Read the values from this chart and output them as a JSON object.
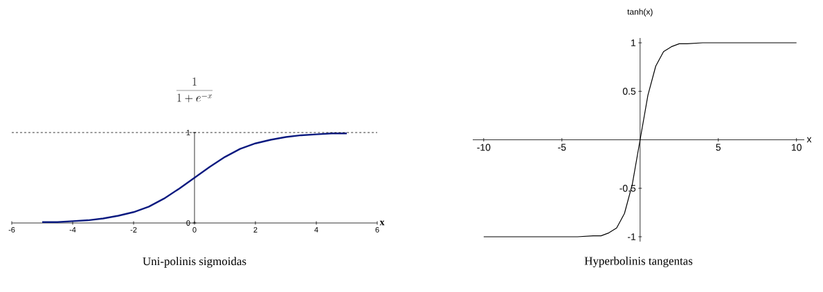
{
  "chart_data": [
    {
      "type": "line",
      "title": "Uni-polinis sigmoidas",
      "xlabel": "x",
      "ylabel": "\\frac{1}{1+e^{-x}}",
      "color": "#0a1a80",
      "x": [
        -5,
        -4.5,
        -4,
        -3.5,
        -3,
        -2.5,
        -2,
        -1.5,
        -1,
        -0.5,
        0,
        0.5,
        1,
        1.5,
        2,
        2.5,
        3,
        3.5,
        4,
        4.5,
        5
      ],
      "values": [
        0.01,
        0.01,
        0.02,
        0.03,
        0.05,
        0.08,
        0.12,
        0.18,
        0.27,
        0.38,
        0.5,
        0.62,
        0.73,
        0.82,
        0.88,
        0.92,
        0.95,
        0.97,
        0.98,
        0.99,
        0.99
      ],
      "xlim": [
        -6,
        6
      ],
      "xticks": [
        -6,
        -4,
        -2,
        0,
        2,
        4,
        6
      ],
      "ylim": [
        0,
        1
      ],
      "yticks": [
        0,
        1
      ],
      "ref_lines": [
        {
          "axis": "y",
          "value": 1,
          "line_style": "dashed"
        }
      ]
    },
    {
      "type": "line",
      "title": "Hyperbolinis tangentas",
      "xlabel": "x",
      "ylabel": "tanh(x)",
      "color": "#000000",
      "x": [
        -10,
        -7,
        -5,
        -4,
        -3,
        -2.5,
        -2,
        -1.5,
        -1,
        -0.5,
        0,
        0.5,
        1,
        1.5,
        2,
        2.5,
        3,
        4,
        5,
        7,
        10
      ],
      "values": [
        -1,
        -1,
        -1,
        -1,
        -0.99,
        -0.99,
        -0.96,
        -0.91,
        -0.76,
        -0.46,
        0,
        0.46,
        0.76,
        0.91,
        0.96,
        0.99,
        0.99,
        1,
        1,
        1,
        1
      ],
      "xlim": [
        -10.7,
        10.5
      ],
      "xticks": [
        -10,
        -5,
        5,
        10
      ],
      "ylim": [
        -1.05,
        1.05
      ],
      "yticks": [
        -1,
        -0.5,
        0.5,
        1
      ]
    }
  ]
}
